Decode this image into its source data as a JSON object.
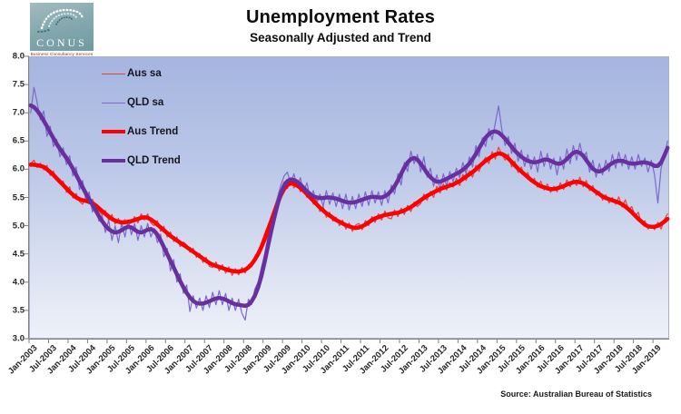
{
  "logo": {
    "name": "CONUS",
    "tagline": "Business Consultancy Services"
  },
  "header": {
    "title": "Unemployment Rates",
    "subtitle": "Seasonally Adjusted and Trend"
  },
  "source": "Source: Australian Bureau of Statistics",
  "chart_data": {
    "type": "line",
    "title": "Unemployment Rates",
    "subtitle": "Seasonally Adjusted and Trend",
    "ylim": [
      3.0,
      8.0
    ],
    "y_ticks": [
      3.0,
      3.5,
      4.0,
      4.5,
      5.0,
      5.5,
      6.0,
      6.5,
      7.0,
      7.5,
      8.0
    ],
    "grid": false,
    "legend_position": "top-left-inside",
    "months_total": 197,
    "x_start": "Jan-2003",
    "x_tick_labels": [
      "Jan-2003",
      "Jul-2003",
      "Jan-2004",
      "Jul-2004",
      "Jan-2005",
      "Jul-2005",
      "Jan-2006",
      "Jul-2006",
      "Jan-2007",
      "Jul-2007",
      "Jan-2008",
      "Jul-2008",
      "Jan-2009",
      "Jul-2009",
      "Jan-2010",
      "Jul-2010",
      "Jan-2011",
      "Jul-2011",
      "Jan-2012",
      "Jul-2012",
      "Jan-2013",
      "Jul-2013",
      "Jan-2014",
      "Jul-2014",
      "Jan-2015",
      "Jul-2015",
      "Jan-2016",
      "Jul-2016",
      "Jan-2017",
      "Jul-2017",
      "Jan-2018",
      "Jul-2018",
      "Jan-2019"
    ],
    "series": [
      {
        "name": "Aus sa",
        "color": "#e0463e",
        "width": 1.2,
        "values": [
          6.1,
          6.16,
          6.03,
          6.11,
          5.99,
          6.07,
          5.89,
          5.97,
          5.8,
          5.74,
          5.79,
          5.59,
          5.69,
          5.49,
          5.57,
          5.43,
          5.38,
          5.51,
          5.4,
          5.47,
          5.33,
          5.26,
          5.19,
          5.27,
          5.09,
          5.2,
          5.03,
          5.13,
          4.99,
          5.11,
          5.01,
          5.06,
          5.16,
          5.05,
          5.21,
          5.1,
          5.21,
          5.05,
          5.0,
          5.09,
          4.9,
          4.99,
          4.8,
          4.89,
          4.72,
          4.8,
          4.63,
          4.71,
          4.66,
          4.53,
          4.6,
          4.44,
          4.51,
          4.35,
          4.44,
          4.28,
          4.26,
          4.36,
          4.2,
          4.31,
          4.16,
          4.27,
          4.12,
          4.24,
          4.13,
          4.26,
          4.16,
          4.31,
          4.27,
          4.46,
          4.55,
          4.7,
          4.86,
          5.0,
          5.16,
          5.33,
          5.49,
          5.64,
          5.78,
          5.66,
          5.82,
          5.67,
          5.76,
          5.6,
          5.66,
          5.5,
          5.56,
          5.38,
          5.45,
          5.25,
          5.34,
          5.15,
          5.24,
          5.08,
          5.15,
          5.0,
          5.1,
          4.94,
          5.05,
          4.9,
          5.01,
          5.04,
          4.93,
          5.09,
          5.0,
          5.16,
          5.06,
          5.21,
          5.1,
          5.26,
          5.14,
          5.12,
          5.28,
          5.16,
          5.31,
          5.2,
          5.36,
          5.25,
          5.42,
          5.34,
          5.39,
          5.56,
          5.45,
          5.61,
          5.5,
          5.7,
          5.58,
          5.74,
          5.63,
          5.76,
          5.68,
          5.84,
          5.71,
          5.91,
          5.8,
          5.97,
          5.86,
          6.07,
          5.96,
          6.12,
          6.21,
          6.1,
          6.31,
          6.18,
          6.39,
          6.26,
          6.16,
          6.27,
          6.04,
          6.14,
          5.94,
          6.04,
          5.88,
          5.94,
          5.78,
          5.84,
          5.68,
          5.79,
          5.63,
          5.74,
          5.59,
          5.7,
          5.6,
          5.76,
          5.64,
          5.81,
          5.69,
          5.82,
          5.71,
          5.86,
          5.69,
          5.8,
          5.62,
          5.71,
          5.54,
          5.61,
          5.45,
          5.55,
          5.4,
          5.5,
          5.38,
          5.51,
          5.33,
          5.46,
          5.28,
          5.34,
          5.17,
          5.24,
          5.03,
          5.09,
          4.94,
          5.01,
          4.93,
          5.06,
          4.94,
          5.11,
          5.21
        ]
      },
      {
        "name": "QLD sa",
        "color": "#7b68c8",
        "width": 1.2,
        "values": [
          7.0,
          7.45,
          7.18,
          6.88,
          7.03,
          6.58,
          6.76,
          6.4,
          6.53,
          6.22,
          6.38,
          6.08,
          6.24,
          5.88,
          6.04,
          5.64,
          5.8,
          5.44,
          5.6,
          5.24,
          5.38,
          5.08,
          5.18,
          4.88,
          5.1,
          4.74,
          5.0,
          4.7,
          5.05,
          4.8,
          5.1,
          4.84,
          5.04,
          4.74,
          5.0,
          4.8,
          5.04,
          4.8,
          4.95,
          4.7,
          4.85,
          4.45,
          4.6,
          4.2,
          4.4,
          4.0,
          4.15,
          3.8,
          3.95,
          3.48,
          3.76,
          3.54,
          3.72,
          3.5,
          3.76,
          3.55,
          3.82,
          3.6,
          3.85,
          3.6,
          3.8,
          3.5,
          3.72,
          3.5,
          3.7,
          3.45,
          3.33,
          3.7,
          3.6,
          3.88,
          4.0,
          4.26,
          4.5,
          4.8,
          5.05,
          5.3,
          5.52,
          5.72,
          5.88,
          5.95,
          5.74,
          5.92,
          5.68,
          5.85,
          5.58,
          5.76,
          5.48,
          5.62,
          5.38,
          5.56,
          5.34,
          5.62,
          5.38,
          5.58,
          5.34,
          5.56,
          5.3,
          5.56,
          5.28,
          5.52,
          5.3,
          5.56,
          5.34,
          5.6,
          5.36,
          5.62,
          5.4,
          5.6,
          5.36,
          5.62,
          5.4,
          5.72,
          5.56,
          5.92,
          5.72,
          6.12,
          5.96,
          6.32,
          6.1,
          6.26,
          5.95,
          6.22,
          5.86,
          6.02,
          5.7,
          5.9,
          5.64,
          5.92,
          5.7,
          5.96,
          5.78,
          6.02,
          5.85,
          6.12,
          5.92,
          6.22,
          6.04,
          6.42,
          6.22,
          6.56,
          6.4,
          6.72,
          6.52,
          6.82,
          7.12,
          6.7,
          6.42,
          6.58,
          6.28,
          6.46,
          6.14,
          6.34,
          6.05,
          6.26,
          6.0,
          6.22,
          5.95,
          6.32,
          6.05,
          6.28,
          6.0,
          6.2,
          5.9,
          6.22,
          6.0,
          6.36,
          6.1,
          6.42,
          6.16,
          6.46,
          6.2,
          6.3,
          5.95,
          6.16,
          5.86,
          6.1,
          5.9,
          6.16,
          5.96,
          6.26,
          6.02,
          6.3,
          6.06,
          6.26,
          6.0,
          6.22,
          6.0,
          6.26,
          6.05,
          6.2,
          5.95,
          6.16,
          5.9,
          5.4,
          6.02,
          6.22,
          6.5
        ]
      },
      {
        "name": "Aus Trend",
        "color": "#ff0000",
        "width": 4.5,
        "values": [
          6.08,
          6.08,
          6.07,
          6.06,
          6.04,
          6.0,
          5.95,
          5.9,
          5.84,
          5.78,
          5.72,
          5.66,
          5.6,
          5.55,
          5.5,
          5.47,
          5.45,
          5.44,
          5.42,
          5.4,
          5.36,
          5.31,
          5.26,
          5.21,
          5.16,
          5.12,
          5.09,
          5.07,
          5.06,
          5.06,
          5.07,
          5.08,
          5.1,
          5.12,
          5.14,
          5.15,
          5.14,
          5.11,
          5.07,
          5.02,
          4.97,
          4.92,
          4.87,
          4.82,
          4.78,
          4.74,
          4.7,
          4.66,
          4.62,
          4.58,
          4.54,
          4.5,
          4.46,
          4.42,
          4.38,
          4.34,
          4.31,
          4.29,
          4.27,
          4.25,
          4.23,
          4.21,
          4.2,
          4.19,
          4.19,
          4.2,
          4.22,
          4.26,
          4.32,
          4.4,
          4.5,
          4.62,
          4.76,
          4.92,
          5.08,
          5.24,
          5.4,
          5.54,
          5.65,
          5.72,
          5.75,
          5.74,
          5.71,
          5.67,
          5.62,
          5.56,
          5.5,
          5.44,
          5.38,
          5.32,
          5.27,
          5.22,
          5.18,
          5.14,
          5.1,
          5.07,
          5.04,
          5.01,
          4.99,
          4.97,
          4.96,
          4.97,
          4.99,
          5.02,
          5.06,
          5.1,
          5.13,
          5.15,
          5.17,
          5.19,
          5.2,
          5.21,
          5.22,
          5.23,
          5.25,
          5.27,
          5.3,
          5.33,
          5.37,
          5.41,
          5.45,
          5.49,
          5.53,
          5.56,
          5.59,
          5.62,
          5.65,
          5.67,
          5.69,
          5.71,
          5.73,
          5.76,
          5.79,
          5.83,
          5.87,
          5.91,
          5.95,
          6.0,
          6.05,
          6.1,
          6.15,
          6.19,
          6.23,
          6.26,
          6.28,
          6.27,
          6.24,
          6.19,
          6.13,
          6.07,
          6.01,
          5.96,
          5.91,
          5.86,
          5.81,
          5.77,
          5.73,
          5.7,
          5.68,
          5.66,
          5.65,
          5.65,
          5.66,
          5.68,
          5.7,
          5.73,
          5.75,
          5.77,
          5.78,
          5.77,
          5.75,
          5.72,
          5.68,
          5.64,
          5.6,
          5.56,
          5.52,
          5.49,
          5.47,
          5.45,
          5.43,
          5.41,
          5.38,
          5.34,
          5.29,
          5.24,
          5.18,
          5.12,
          5.07,
          5.02,
          4.99,
          4.98,
          4.98,
          5.0,
          5.03,
          5.07,
          5.12
        ]
      },
      {
        "name": "QLD Trend",
        "color": "#6a2f9e",
        "width": 4.5,
        "values": [
          7.13,
          7.1,
          7.04,
          6.96,
          6.86,
          6.76,
          6.65,
          6.55,
          6.45,
          6.36,
          6.28,
          6.2,
          6.11,
          6.01,
          5.9,
          5.79,
          5.68,
          5.57,
          5.47,
          5.37,
          5.27,
          5.17,
          5.08,
          5.0,
          4.94,
          4.9,
          4.88,
          4.89,
          4.92,
          4.96,
          4.98,
          4.97,
          4.93,
          4.89,
          4.88,
          4.9,
          4.93,
          4.94,
          4.91,
          4.84,
          4.74,
          4.62,
          4.5,
          4.38,
          4.26,
          4.14,
          4.02,
          3.91,
          3.81,
          3.73,
          3.67,
          3.63,
          3.62,
          3.62,
          3.64,
          3.66,
          3.69,
          3.71,
          3.72,
          3.71,
          3.69,
          3.66,
          3.63,
          3.61,
          3.6,
          3.59,
          3.58,
          3.6,
          3.66,
          3.76,
          3.91,
          4.11,
          4.36,
          4.63,
          4.9,
          5.15,
          5.38,
          5.57,
          5.71,
          5.79,
          5.82,
          5.81,
          5.78,
          5.73,
          5.67,
          5.61,
          5.56,
          5.52,
          5.5,
          5.49,
          5.49,
          5.5,
          5.5,
          5.49,
          5.48,
          5.46,
          5.44,
          5.42,
          5.41,
          5.41,
          5.42,
          5.44,
          5.46,
          5.48,
          5.5,
          5.51,
          5.51,
          5.5,
          5.5,
          5.52,
          5.56,
          5.62,
          5.7,
          5.8,
          5.92,
          6.03,
          6.12,
          6.18,
          6.2,
          6.17,
          6.1,
          6.02,
          5.93,
          5.86,
          5.81,
          5.78,
          5.78,
          5.8,
          5.83,
          5.86,
          5.89,
          5.92,
          5.95,
          5.99,
          6.04,
          6.1,
          6.18,
          6.27,
          6.37,
          6.47,
          6.56,
          6.62,
          6.66,
          6.67,
          6.65,
          6.6,
          6.54,
          6.47,
          6.4,
          6.33,
          6.27,
          6.22,
          6.18,
          6.15,
          6.13,
          6.12,
          6.13,
          6.15,
          6.17,
          6.17,
          6.15,
          6.12,
          6.1,
          6.1,
          6.13,
          6.18,
          6.24,
          6.29,
          6.31,
          6.29,
          6.24,
          6.16,
          6.08,
          6.01,
          5.97,
          5.96,
          5.98,
          6.02,
          6.07,
          6.11,
          6.14,
          6.15,
          6.15,
          6.13,
          6.11,
          6.1,
          6.1,
          6.11,
          6.12,
          6.12,
          6.11,
          6.09,
          6.06,
          6.06,
          6.12,
          6.24,
          6.38
        ]
      }
    ]
  }
}
